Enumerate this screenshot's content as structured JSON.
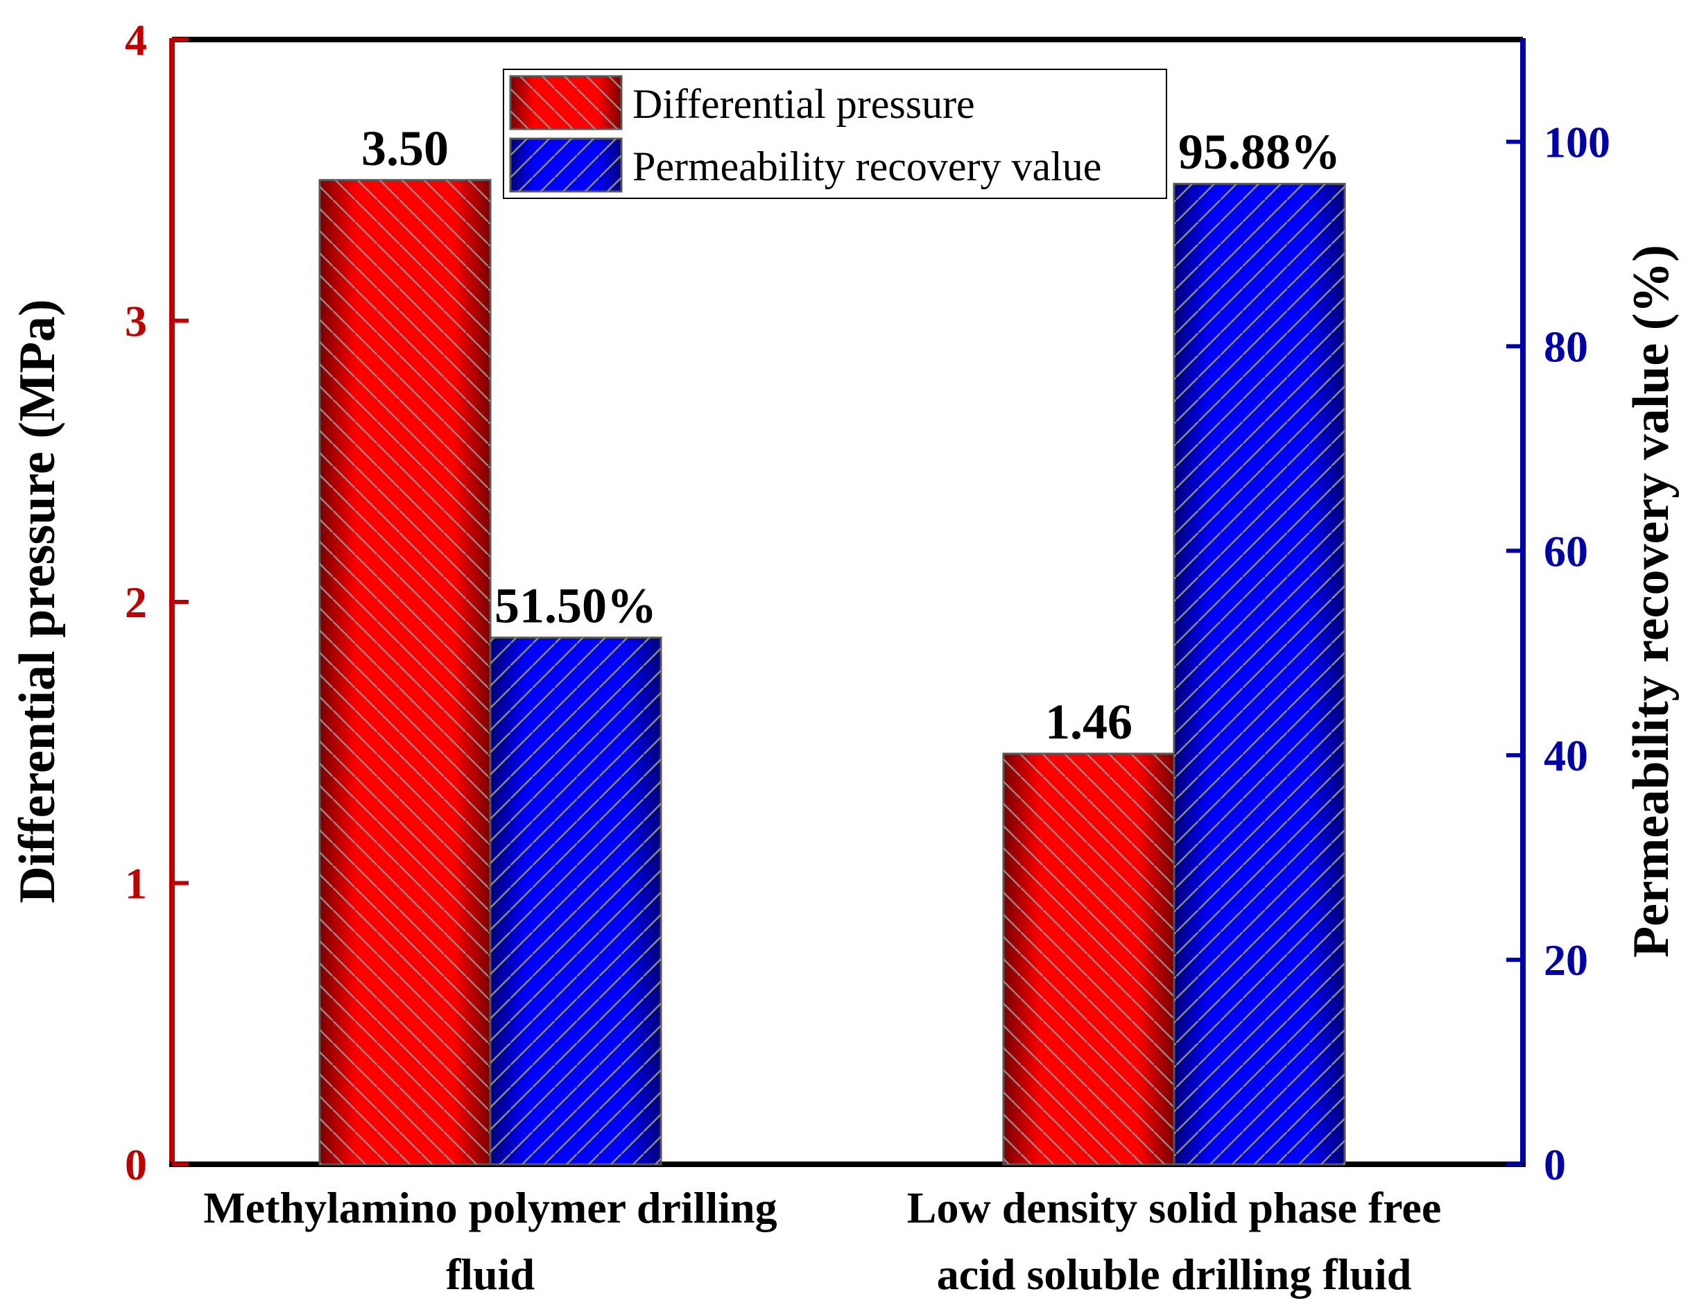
{
  "chart_data": {
    "type": "bar",
    "categories": [
      [
        "Methylamino polymer drilling",
        "fluid"
      ],
      [
        "Low density solid phase free",
        "acid soluble drilling fluid"
      ]
    ],
    "series": [
      {
        "name": "Differential pressure",
        "axis": "left",
        "values": [
          3.5,
          1.46
        ],
        "labels": [
          "3.50",
          "1.46"
        ],
        "color": "#ff0000"
      },
      {
        "name": "Permeability recovery value",
        "axis": "right",
        "values": [
          51.5,
          95.88
        ],
        "labels": [
          "51.50%",
          "95.88%"
        ],
        "color": "#0000ff"
      }
    ],
    "left_axis": {
      "label": "Differential pressure (MPa)",
      "range": [
        0,
        4
      ],
      "ticks": [
        0,
        1,
        2,
        3,
        4
      ],
      "color": "#c00000"
    },
    "right_axis": {
      "label": "Permeability recovery value (%)",
      "range": [
        0,
        110
      ],
      "ticks": [
        0,
        20,
        40,
        60,
        80,
        100
      ],
      "color": "#0000a8"
    },
    "legend": {
      "placement": "top-center"
    },
    "grid": false
  }
}
